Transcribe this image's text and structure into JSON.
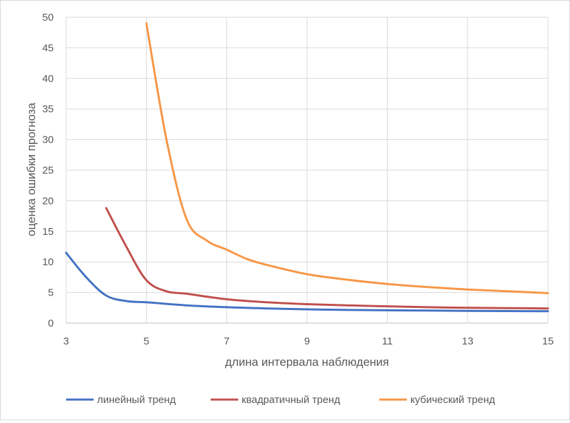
{
  "chart_data": {
    "type": "line",
    "title": "",
    "xlabel": "длина интервала наблюдения",
    "ylabel": "оценка ошибки прогноза",
    "xlim": [
      3,
      15
    ],
    "ylim": [
      0,
      50
    ],
    "xticks": [
      3,
      5,
      7,
      9,
      11,
      13,
      15
    ],
    "yticks": [
      0,
      5,
      10,
      15,
      20,
      25,
      30,
      35,
      40,
      45,
      50
    ],
    "grid": "vertical and horizontal",
    "legend_position": "bottom",
    "series": [
      {
        "name": "линейный тренд",
        "color": "#4472c4",
        "points": [
          [
            3,
            11.5
          ],
          [
            3.5,
            7.5
          ],
          [
            4,
            4.5
          ],
          [
            4.5,
            3.6
          ],
          [
            5,
            3.4
          ],
          [
            6,
            2.9
          ],
          [
            7,
            2.6
          ],
          [
            8,
            2.4
          ],
          [
            9,
            2.25
          ],
          [
            10,
            2.15
          ],
          [
            11,
            2.1
          ],
          [
            12,
            2.05
          ],
          [
            13,
            2.0
          ],
          [
            14,
            1.97
          ],
          [
            15,
            1.95
          ]
        ]
      },
      {
        "name": "квадратичный тренд",
        "color": "#c0504d",
        "points": [
          [
            4,
            18.8
          ],
          [
            4.5,
            12.5
          ],
          [
            5,
            7.0
          ],
          [
            5.5,
            5.2
          ],
          [
            6,
            4.8
          ],
          [
            7,
            3.9
          ],
          [
            8,
            3.4
          ],
          [
            9,
            3.1
          ],
          [
            10,
            2.9
          ],
          [
            11,
            2.75
          ],
          [
            12,
            2.6
          ],
          [
            13,
            2.5
          ],
          [
            14,
            2.45
          ],
          [
            15,
            2.4
          ]
        ]
      },
      {
        "name": "кубический тренд",
        "color": "#f79646",
        "points": [
          [
            5,
            49
          ],
          [
            5.5,
            30
          ],
          [
            6,
            17
          ],
          [
            6.5,
            13.5
          ],
          [
            7,
            12
          ],
          [
            7.5,
            10.5
          ],
          [
            8,
            9.5
          ],
          [
            9,
            8.0
          ],
          [
            10,
            7.1
          ],
          [
            11,
            6.4
          ],
          [
            12,
            5.9
          ],
          [
            13,
            5.5
          ],
          [
            14,
            5.2
          ],
          [
            15,
            4.9
          ]
        ]
      }
    ]
  }
}
